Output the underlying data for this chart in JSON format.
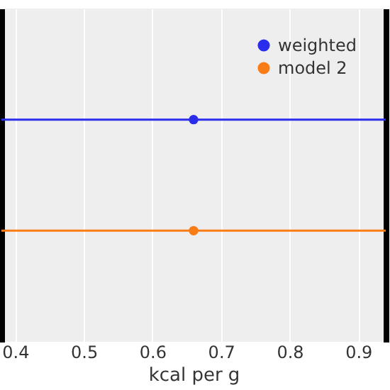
{
  "chart_data": {
    "type": "scatter",
    "orientation": "horizontal",
    "xlabel": "kcal per g",
    "categories": [
      null,
      null
    ],
    "series": [
      {
        "name": "weighted",
        "color": "#2a2eec",
        "values": [
          0.66,
          null
        ],
        "errors": [
          [
            0.38,
            0.94
          ],
          null
        ]
      },
      {
        "name": "model 2",
        "color": "#fa7c17",
        "values": [
          null,
          0.66
        ],
        "errors": [
          null,
          [
            0.38,
            0.94
          ]
        ]
      }
    ],
    "xlim": [
      0.38,
      0.94
    ],
    "xticks": [
      0.4,
      0.5,
      0.6,
      0.7,
      0.8,
      0.9
    ],
    "grid": "x",
    "legend": "top right",
    "marker": "circle",
    "tick_labels": "x"
  }
}
